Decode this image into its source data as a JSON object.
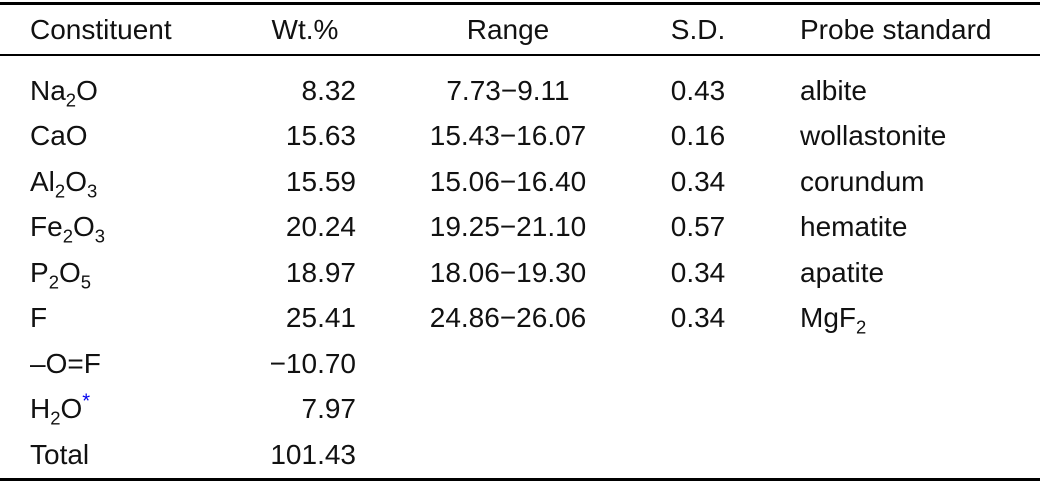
{
  "table": {
    "columns": [
      "Constituent",
      "Wt.%",
      "Range",
      "S.D.",
      "Probe standard"
    ],
    "rows": [
      {
        "constituent": "Na_2_O",
        "wt": "8.32",
        "range": "7.73−9.11",
        "sd": "0.43",
        "standard": "albite"
      },
      {
        "constituent": "CaO",
        "wt": "15.63",
        "range": "15.43−16.07",
        "sd": "0.16",
        "standard": "wollastonite"
      },
      {
        "constituent": "Al_2_O_3_",
        "wt": "15.59",
        "range": "15.06−16.40",
        "sd": "0.34",
        "standard": "corundum"
      },
      {
        "constituent": "Fe_2_O_3_",
        "wt": "20.24",
        "range": "19.25−21.10",
        "sd": "0.57",
        "standard": "hematite"
      },
      {
        "constituent": "P_2_O_5_",
        "wt": "18.97",
        "range": "18.06−19.30",
        "sd": "0.34",
        "standard": "apatite"
      },
      {
        "constituent": "F",
        "wt": "25.41",
        "range": "24.86−26.06",
        "sd": "0.34",
        "standard": "MgF_2_"
      },
      {
        "constituent": "–O=F",
        "wt": "−10.70",
        "range": "",
        "sd": "",
        "standard": ""
      },
      {
        "constituent": "H_2_O^*^",
        "wt": "7.97",
        "range": "",
        "sd": "",
        "standard": ""
      },
      {
        "constituent": "Total",
        "wt": "101.43",
        "range": "",
        "sd": "",
        "standard": ""
      }
    ],
    "colors": {
      "text": "#111111",
      "rule": "#000000",
      "footnote_marker": "#0000ee"
    }
  }
}
